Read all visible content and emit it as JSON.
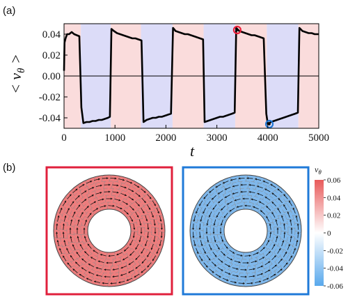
{
  "panels": {
    "a_label": "(a)",
    "b_label": "(b)"
  },
  "chart_data": {
    "type": "line",
    "xlabel": "t",
    "ylabel": "< v",
    "ylabel_sub": "θ",
    "ylabel_close": " >",
    "xlim": [
      0,
      5000
    ],
    "ylim": [
      -0.05,
      0.05
    ],
    "xticks": [
      "0",
      "1000",
      "2000",
      "3000",
      "4000",
      "5000"
    ],
    "xtick_values": [
      0,
      1000,
      2000,
      3000,
      4000,
      5000
    ],
    "yticks": [
      "0.04",
      "0.02",
      "0.00",
      "-0.02",
      "-0.04"
    ],
    "ytick_values": [
      0.04,
      0.02,
      0.0,
      -0.02,
      -0.04
    ],
    "zero_line": 0.0,
    "shaded_bands": [
      {
        "from": 0,
        "to": 330,
        "color": "#fadcdc"
      },
      {
        "from": 330,
        "to": 920,
        "color": "#dcdcf8"
      },
      {
        "from": 920,
        "to": 1510,
        "color": "#fadcdc"
      },
      {
        "from": 1510,
        "to": 2130,
        "color": "#dcdcf8"
      },
      {
        "from": 2130,
        "to": 2740,
        "color": "#fadcdc"
      },
      {
        "from": 2740,
        "to": 3360,
        "color": "#dcdcf8"
      },
      {
        "from": 3360,
        "to": 3980,
        "color": "#fadcdc"
      },
      {
        "from": 3980,
        "to": 4600,
        "color": "#dcdcf8"
      },
      {
        "from": 4600,
        "to": 5000,
        "color": "#fadcdc"
      }
    ],
    "series": [
      {
        "color": "#000000",
        "x": [
          0,
          10,
          30,
          60,
          100,
          150,
          200,
          250,
          300,
          340,
          380,
          440,
          500,
          560,
          620,
          680,
          740,
          800,
          860,
          900,
          930,
          980,
          1040,
          1100,
          1160,
          1220,
          1280,
          1340,
          1400,
          1460,
          1520,
          1560,
          1620,
          1680,
          1740,
          1800,
          1860,
          1920,
          1980,
          2040,
          2100,
          2140,
          2190,
          2250,
          2310,
          2370,
          2430,
          2490,
          2550,
          2610,
          2670,
          2730,
          2760,
          2820,
          2880,
          2940,
          3000,
          3060,
          3120,
          3180,
          3240,
          3300,
          3350,
          3380,
          3440,
          3500,
          3560,
          3620,
          3680,
          3740,
          3800,
          3860,
          3920,
          3970,
          4000,
          4060,
          4120,
          4180,
          4240,
          4300,
          4360,
          4420,
          4480,
          4540,
          4590,
          4620,
          4680,
          4740,
          4800,
          4860,
          4920,
          4980,
          5000
        ],
        "y": [
          0.005,
          0.032,
          0.036,
          0.04,
          0.04,
          0.042,
          0.04,
          0.039,
          0.038,
          -0.03,
          -0.045,
          -0.044,
          -0.044,
          -0.043,
          -0.043,
          -0.042,
          -0.042,
          -0.041,
          -0.04,
          -0.039,
          0.045,
          0.043,
          0.041,
          0.04,
          0.039,
          0.038,
          0.037,
          0.036,
          0.036,
          0.035,
          0.034,
          -0.044,
          -0.042,
          -0.041,
          -0.04,
          -0.04,
          -0.039,
          -0.039,
          -0.038,
          -0.037,
          -0.036,
          0.046,
          0.043,
          0.042,
          0.041,
          0.04,
          0.04,
          0.039,
          0.038,
          0.037,
          0.036,
          0.035,
          -0.044,
          -0.043,
          -0.042,
          -0.041,
          -0.04,
          -0.039,
          -0.039,
          -0.038,
          -0.037,
          -0.036,
          -0.035,
          0.046,
          0.043,
          0.042,
          0.041,
          0.04,
          0.039,
          0.039,
          0.038,
          0.037,
          0.036,
          -0.036,
          -0.046,
          -0.044,
          -0.043,
          -0.042,
          -0.041,
          -0.04,
          -0.039,
          -0.038,
          -0.037,
          -0.036,
          -0.035,
          0.046,
          0.043,
          0.042,
          0.041,
          0.041,
          0.04,
          0.04,
          0.04
        ]
      }
    ],
    "markers": [
      {
        "x": 3400,
        "y": 0.044,
        "color": "#e8203a",
        "kind": "ring"
      },
      {
        "x": 4030,
        "y": -0.046,
        "color": "#1f77d4",
        "kind": "ring"
      }
    ]
  },
  "snapshots": {
    "left": {
      "frame_color": "#e0203c",
      "fill_color": "#ee7d7d",
      "state": "positive"
    },
    "right": {
      "frame_color": "#1f7ad8",
      "fill_color": "#7fb8ec",
      "state": "negative"
    }
  },
  "colorbar": {
    "title": "v",
    "title_sub": "θ",
    "ticks": [
      "0.06",
      "0.04",
      "0.02",
      "0",
      "-0.02",
      "-0.04",
      "-0.06"
    ],
    "tick_values": [
      0.06,
      0.04,
      0.02,
      0.0,
      -0.02,
      -0.04,
      -0.06
    ],
    "top_color": "#e85a5a",
    "mid_color": "#ffffff",
    "bottom_color": "#58a8ec"
  }
}
